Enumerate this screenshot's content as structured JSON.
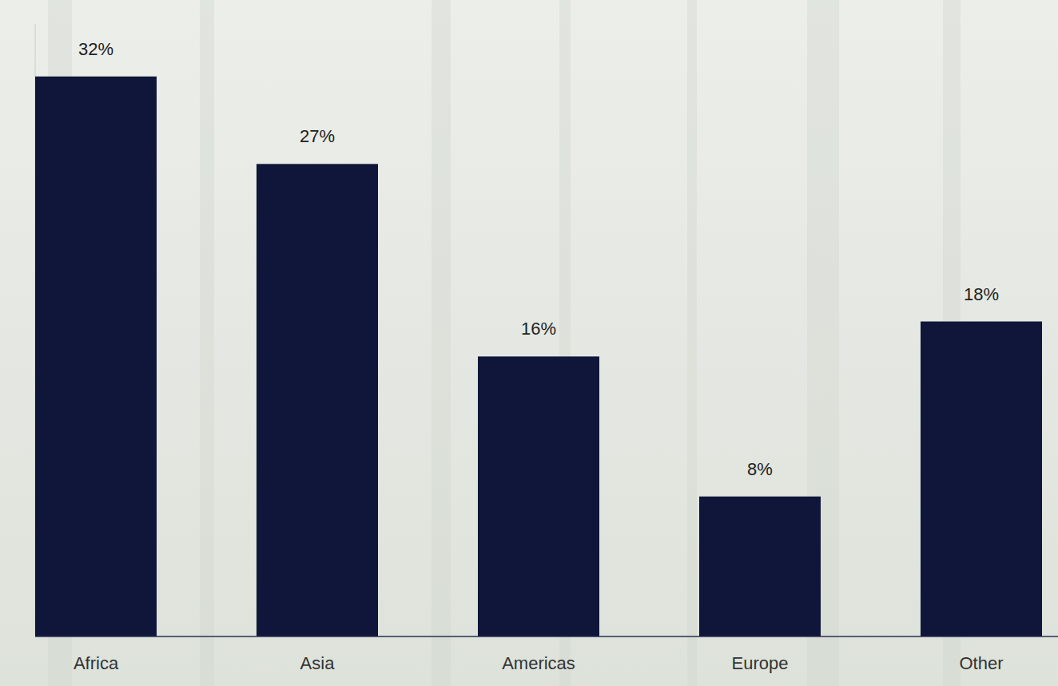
{
  "chart_data": {
    "type": "bar",
    "categories": [
      "Africa",
      "Asia",
      "Americas",
      "Europe",
      "Other"
    ],
    "values": [
      32,
      27,
      16,
      8,
      18
    ],
    "value_labels": [
      "32%",
      "27%",
      "16%",
      "8%",
      "18%"
    ],
    "color": "#0f1639",
    "ylim": [
      0,
      35
    ],
    "data_labels": true,
    "tick_labels": "x"
  }
}
